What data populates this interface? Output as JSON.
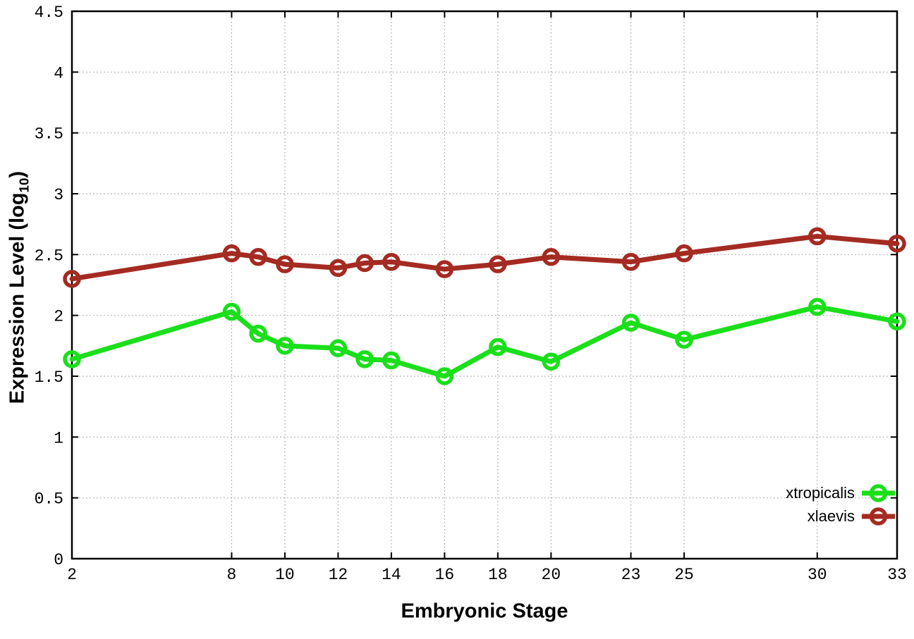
{
  "figure": {
    "background": "#ffffff",
    "text_color": "#000000",
    "grid_color": "#9e9e9e",
    "border_color": "#000000"
  },
  "chart_data": {
    "type": "line",
    "title": "",
    "xlabel": "Embryonic Stage",
    "ylabel": "Expression Level (log10)",
    "ylabel_parts": {
      "pre": "Expression Level (log",
      "sub": "10",
      "post": ")"
    },
    "xlim": [
      2,
      33
    ],
    "ylim": [
      0,
      4.5
    ],
    "xticks": [
      2,
      8,
      10,
      12,
      14,
      16,
      18,
      20,
      23,
      25,
      30,
      33
    ],
    "yticks": [
      0,
      0.5,
      1,
      1.5,
      2,
      2.5,
      3,
      3.5,
      4,
      4.5
    ],
    "grid": true,
    "legend_position": "inside-bottom-right",
    "x": [
      2,
      8,
      9,
      10,
      12,
      13,
      14,
      16,
      18,
      20,
      23,
      25,
      30,
      33
    ],
    "series": [
      {
        "name": "xtropicalis",
        "color": "#1adf1a",
        "marker": "open-circle",
        "values": [
          1.64,
          2.03,
          1.85,
          1.75,
          1.73,
          1.64,
          1.63,
          1.5,
          1.74,
          1.62,
          1.94,
          1.8,
          2.07,
          1.95
        ]
      },
      {
        "name": "xlaevis",
        "color": "#a42b22",
        "marker": "open-circle",
        "values": [
          2.3,
          2.51,
          2.48,
          2.42,
          2.39,
          2.43,
          2.44,
          2.38,
          2.42,
          2.48,
          2.44,
          2.51,
          2.65,
          2.59
        ]
      }
    ]
  }
}
